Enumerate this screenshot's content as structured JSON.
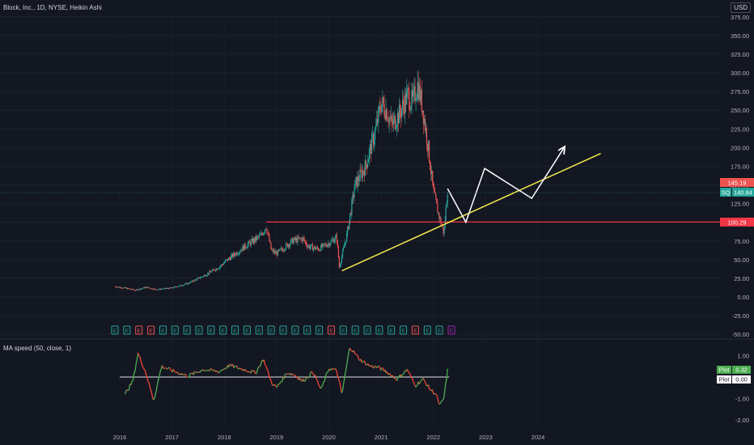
{
  "header": {
    "title": "Block, Inc., 1D, NYSE, Heikin Ashi",
    "currency": "USD"
  },
  "price_axis": {
    "labels": [
      "375.00",
      "350.00",
      "325.00",
      "300.00",
      "275.00",
      "250.00",
      "225.00",
      "200.00",
      "175.00",
      "150.00",
      "125.00",
      "100.00",
      "75.00",
      "50.00",
      "25.00",
      "0.00",
      "-25.00",
      "-50.00"
    ]
  },
  "badges": {
    "high": "145.19",
    "symbol": "SQ",
    "last": "140.84",
    "level": "100.29"
  },
  "time_axis": {
    "labels": [
      "2016",
      "2017",
      "2018",
      "2019",
      "2020",
      "2021",
      "2022",
      "2023",
      "2024"
    ]
  },
  "events": {
    "markers": [
      "E",
      "E",
      "E",
      "E",
      "E",
      "E",
      "E",
      "E",
      "E",
      "E",
      "E",
      "E",
      "E",
      "E",
      "E",
      "E",
      "E",
      "E",
      "E",
      "E",
      "E",
      "E",
      "E",
      "E",
      "E",
      "E",
      "E",
      "E",
      "E"
    ],
    "colors": [
      "#26a69a",
      "#26a69a",
      "#ef5350",
      "#ef5350",
      "#26a69a",
      "#26a69a",
      "#26a69a",
      "#26a69a",
      "#26a69a",
      "#26a69a",
      "#26a69a",
      "#26a69a",
      "#26a69a",
      "#26a69a",
      "#26a69a",
      "#26a69a",
      "#26a69a",
      "#26a69a",
      "#ef5350",
      "#26a69a",
      "#26a69a",
      "#26a69a",
      "#26a69a",
      "#26a69a",
      "#26a69a",
      "#ef5350",
      "#26a69a",
      "#26a69a",
      "#9c27b0"
    ]
  },
  "indicator": {
    "title": "MA speed (50, close, 1)",
    "axis_labels": [
      "1.00",
      "-1.00",
      "-2.00"
    ],
    "plot_label": "Plot",
    "plot_value": "0.32",
    "plot2_label": "Plot",
    "plot2_value": "0.00"
  },
  "colors": {
    "up": "#26a69a",
    "down": "#ef5350",
    "resistance": "#f23645",
    "trend": "#f5e94d",
    "projection": "#ffffff",
    "indicator_up": "#4caf50",
    "indicator_down": "#f44336"
  },
  "chart_data": {
    "type": "candlestick",
    "symbol": "SQ",
    "interval": "1D",
    "style": "Heikin Ashi",
    "x_range": [
      2015.6,
      2025.5
    ],
    "y_range": [
      -55,
      380
    ],
    "price_path": [
      [
        2015.9,
        14
      ],
      [
        2016.1,
        12
      ],
      [
        2016.3,
        9
      ],
      [
        2016.5,
        13
      ],
      [
        2016.7,
        10
      ],
      [
        2017.0,
        12
      ],
      [
        2017.3,
        18
      ],
      [
        2017.6,
        28
      ],
      [
        2017.9,
        40
      ],
      [
        2018.1,
        52
      ],
      [
        2018.4,
        68
      ],
      [
        2018.7,
        82
      ],
      [
        2018.8,
        95
      ],
      [
        2018.9,
        62
      ],
      [
        2019.0,
        58
      ],
      [
        2019.3,
        75
      ],
      [
        2019.5,
        78
      ],
      [
        2019.6,
        68
      ],
      [
        2019.8,
        64
      ],
      [
        2020.0,
        72
      ],
      [
        2020.15,
        80
      ],
      [
        2020.2,
        40
      ],
      [
        2020.35,
        85
      ],
      [
        2020.5,
        150
      ],
      [
        2020.7,
        175
      ],
      [
        2020.9,
        225
      ],
      [
        2021.0,
        260
      ],
      [
        2021.1,
        250
      ],
      [
        2021.2,
        230
      ],
      [
        2021.35,
        245
      ],
      [
        2021.5,
        270
      ],
      [
        2021.6,
        260
      ],
      [
        2021.7,
        285
      ],
      [
        2021.8,
        250
      ],
      [
        2021.9,
        200
      ],
      [
        2022.0,
        140
      ],
      [
        2022.1,
        110
      ],
      [
        2022.2,
        85
      ],
      [
        2022.27,
        145
      ]
    ],
    "resistance_level": 100.29,
    "trendline": [
      [
        2020.25,
        35
      ],
      [
        2025.2,
        192
      ]
    ],
    "projection_path": [
      [
        2022.27,
        145
      ],
      [
        2022.62,
        100
      ],
      [
        2022.98,
        172
      ],
      [
        2023.88,
        132
      ],
      [
        2024.5,
        200
      ]
    ],
    "indicator_series": [
      [
        2016.1,
        -0.8
      ],
      [
        2016.25,
        -0.2
      ],
      [
        2016.35,
        1.1
      ],
      [
        2016.5,
        0.2
      ],
      [
        2016.65,
        -1.1
      ],
      [
        2016.8,
        0.5
      ],
      [
        2017.0,
        0.3
      ],
      [
        2017.3,
        0.05
      ],
      [
        2017.6,
        0.35
      ],
      [
        2017.9,
        0.25
      ],
      [
        2018.1,
        0.55
      ],
      [
        2018.3,
        0.4
      ],
      [
        2018.6,
        0.2
      ],
      [
        2018.75,
        0.85
      ],
      [
        2018.9,
        -0.25
      ],
      [
        2019.0,
        -0.5
      ],
      [
        2019.2,
        0.2
      ],
      [
        2019.35,
        0.1
      ],
      [
        2019.5,
        -0.2
      ],
      [
        2019.7,
        0.25
      ],
      [
        2019.85,
        -0.6
      ],
      [
        2020.0,
        0.4
      ],
      [
        2020.15,
        0.3
      ],
      [
        2020.25,
        -0.8
      ],
      [
        2020.4,
        1.4
      ],
      [
        2020.6,
        0.8
      ],
      [
        2020.8,
        0.5
      ],
      [
        2020.95,
        0.45
      ],
      [
        2021.1,
        0.25
      ],
      [
        2021.3,
        -0.1
      ],
      [
        2021.5,
        0.35
      ],
      [
        2021.65,
        -0.4
      ],
      [
        2021.8,
        -0.1
      ],
      [
        2021.95,
        -0.6
      ],
      [
        2022.05,
        -0.8
      ],
      [
        2022.12,
        -1.35
      ],
      [
        2022.2,
        -1.0
      ],
      [
        2022.27,
        0.32
      ]
    ],
    "indicator_baseline": 0.0,
    "indicator_y_range": [
      -2.5,
      1.6
    ]
  }
}
